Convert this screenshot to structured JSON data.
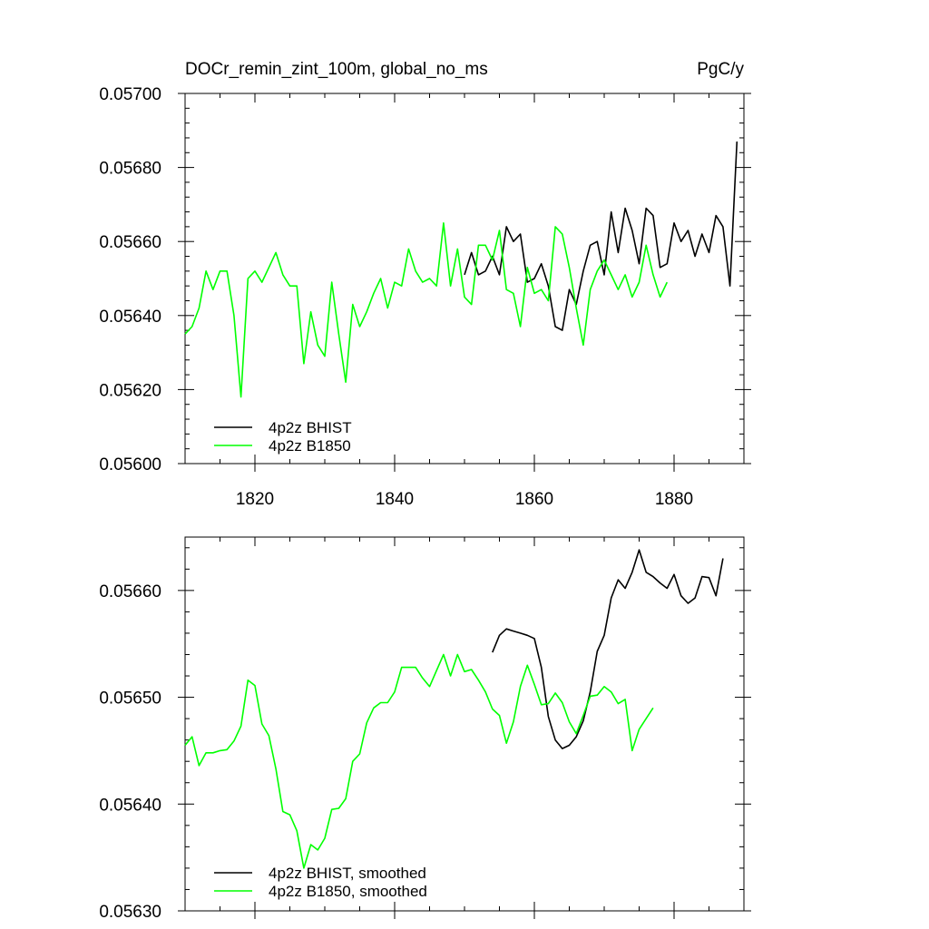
{
  "chart_data": [
    {
      "type": "line",
      "title": "DOCr_remin_zint_100m, global_no_ms",
      "units": "PgC/y",
      "xlabel": "",
      "ylabel": "",
      "xlim": [
        1810,
        1890
      ],
      "ylim": [
        0.056,
        0.057
      ],
      "y_ticks": [
        "0.05600",
        "0.05620",
        "0.05640",
        "0.05660",
        "0.05680",
        "0.05700"
      ],
      "x_ticks": [
        "1820",
        "1840",
        "1860",
        "1880"
      ],
      "grid": false,
      "legend_position": "bottom-left",
      "series": [
        {
          "name": "4p2z BHIST",
          "color": "#000000",
          "x": [
            1850,
            1851,
            1852,
            1853,
            1854,
            1855,
            1856,
            1857,
            1858,
            1859,
            1860,
            1861,
            1862,
            1863,
            1864,
            1865,
            1866,
            1867,
            1868,
            1869,
            1870,
            1871,
            1872,
            1873,
            1874,
            1875,
            1876,
            1877,
            1878,
            1879,
            1880,
            1881,
            1882,
            1883,
            1884,
            1885,
            1886,
            1887,
            1888,
            1889
          ],
          "values": [
            0.05651,
            0.05657,
            0.05651,
            0.05652,
            0.05656,
            0.05651,
            0.05664,
            0.0566,
            0.05662,
            0.05649,
            0.0565,
            0.05654,
            0.05648,
            0.05637,
            0.05636,
            0.05647,
            0.05643,
            0.05652,
            0.05659,
            0.0566,
            0.05651,
            0.05668,
            0.05657,
            0.05669,
            0.05663,
            0.05654,
            0.05669,
            0.05667,
            0.05653,
            0.05654,
            0.05665,
            0.0566,
            0.05663,
            0.05656,
            0.05662,
            0.05657,
            0.05667,
            0.05664,
            0.05648,
            0.05687
          ]
        },
        {
          "name": "4p2z B1850",
          "color": "#00ff00",
          "x": [
            1810,
            1811,
            1812,
            1813,
            1814,
            1815,
            1816,
            1817,
            1818,
            1819,
            1820,
            1821,
            1822,
            1823,
            1824,
            1825,
            1826,
            1827,
            1828,
            1829,
            1830,
            1831,
            1832,
            1833,
            1834,
            1835,
            1836,
            1837,
            1838,
            1839,
            1840,
            1841,
            1842,
            1843,
            1844,
            1845,
            1846,
            1847,
            1848,
            1849,
            1850,
            1851,
            1852,
            1853,
            1854,
            1855,
            1856,
            1857,
            1858,
            1859,
            1860,
            1861,
            1862,
            1863,
            1864,
            1865,
            1866,
            1867,
            1868,
            1869,
            1870,
            1871,
            1872,
            1873,
            1874,
            1875,
            1876,
            1877,
            1878,
            1879
          ],
          "values": [
            0.05635,
            0.05637,
            0.05642,
            0.05652,
            0.05647,
            0.05652,
            0.05652,
            0.0564,
            0.05618,
            0.0565,
            0.05652,
            0.05649,
            0.05653,
            0.05657,
            0.05651,
            0.05648,
            0.05648,
            0.05627,
            0.05641,
            0.05632,
            0.05629,
            0.05649,
            0.05635,
            0.05622,
            0.05643,
            0.05637,
            0.05641,
            0.05646,
            0.0565,
            0.05642,
            0.05649,
            0.05648,
            0.05658,
            0.05652,
            0.05649,
            0.0565,
            0.05648,
            0.05665,
            0.05648,
            0.05658,
            0.05645,
            0.05643,
            0.05659,
            0.05659,
            0.05655,
            0.05663,
            0.05647,
            0.05646,
            0.05637,
            0.05653,
            0.05646,
            0.05647,
            0.05644,
            0.05664,
            0.05662,
            0.05653,
            0.05642,
            0.05632,
            0.05647,
            0.05652,
            0.05655,
            0.05651,
            0.05647,
            0.05651,
            0.05645,
            0.05649,
            0.05659,
            0.05651,
            0.05645,
            0.05649
          ]
        }
      ]
    },
    {
      "type": "line",
      "title": "",
      "xlabel": "",
      "ylabel": "",
      "xlim": [
        1810,
        1890
      ],
      "ylim": [
        0.0563,
        0.05665
      ],
      "y_ticks": [
        "0.05630",
        "0.05640",
        "0.05650",
        "0.05660"
      ],
      "x_ticks": [],
      "grid": false,
      "legend_position": "bottom-left",
      "series": [
        {
          "name": "4p2z BHIST, smoothed",
          "color": "#000000",
          "x": [
            1854,
            1855,
            1856,
            1857,
            1858,
            1859,
            1860,
            1861,
            1862,
            1863,
            1864,
            1865,
            1866,
            1867,
            1868,
            1869,
            1870,
            1871,
            1872,
            1873,
            1874,
            1875,
            1876,
            1877,
            1878,
            1879,
            1880,
            1881,
            1882,
            1883,
            1884,
            1885,
            1886,
            1887
          ],
          "values": [
            0.056542,
            0.056558,
            0.056564,
            0.056562,
            0.05656,
            0.056558,
            0.056555,
            0.056528,
            0.056482,
            0.05646,
            0.056452,
            0.056455,
            0.056463,
            0.056478,
            0.056505,
            0.056543,
            0.056558,
            0.056593,
            0.05661,
            0.056602,
            0.056617,
            0.056638,
            0.056617,
            0.056613,
            0.056607,
            0.056602,
            0.056615,
            0.056595,
            0.056588,
            0.056593,
            0.056613,
            0.056612,
            0.056595,
            0.05663
          ]
        },
        {
          "name": "4p2z B1850, smoothed",
          "color": "#00ff00",
          "x": [
            1810,
            1811,
            1812,
            1813,
            1814,
            1815,
            1816,
            1817,
            1818,
            1819,
            1820,
            1821,
            1822,
            1823,
            1824,
            1825,
            1826,
            1827,
            1828,
            1829,
            1830,
            1831,
            1832,
            1833,
            1834,
            1835,
            1836,
            1837,
            1838,
            1839,
            1840,
            1841,
            1842,
            1843,
            1844,
            1845,
            1846,
            1847,
            1848,
            1849,
            1850,
            1851,
            1852,
            1853,
            1854,
            1855,
            1856,
            1857,
            1858,
            1859,
            1860,
            1861,
            1862,
            1863,
            1864,
            1865,
            1866,
            1867,
            1868,
            1869,
            1870,
            1871,
            1872,
            1873,
            1874,
            1875,
            1876,
            1877
          ],
          "values": [
            0.056455,
            0.056463,
            0.056436,
            0.056448,
            0.056448,
            0.05645,
            0.056451,
            0.056459,
            0.056473,
            0.056516,
            0.056511,
            0.056475,
            0.056464,
            0.056433,
            0.056393,
            0.05639,
            0.056375,
            0.05634,
            0.056362,
            0.056357,
            0.056368,
            0.056395,
            0.056396,
            0.056405,
            0.05644,
            0.056447,
            0.056476,
            0.05649,
            0.056495,
            0.056495,
            0.056505,
            0.056528,
            0.056528,
            0.056528,
            0.056518,
            0.05651,
            0.056525,
            0.05654,
            0.05652,
            0.05654,
            0.056524,
            0.056526,
            0.056516,
            0.056505,
            0.056489,
            0.056483,
            0.056457,
            0.056477,
            0.05651,
            0.05653,
            0.056512,
            0.056493,
            0.056494,
            0.056504,
            0.056495,
            0.056477,
            0.056466,
            0.056483,
            0.056501,
            0.056502,
            0.05651,
            0.056505,
            0.056494,
            0.056498,
            0.05645,
            0.05647,
            0.05648,
            0.05649
          ]
        }
      ]
    }
  ]
}
